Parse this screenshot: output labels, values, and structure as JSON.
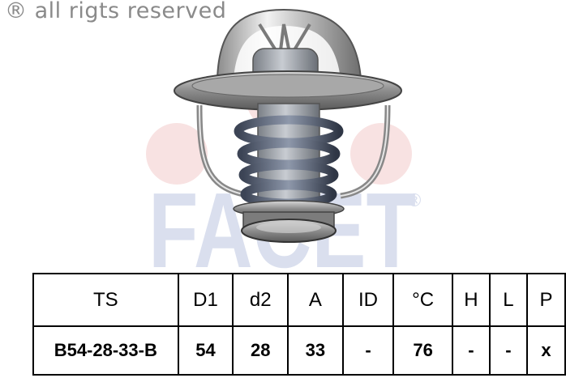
{
  "copyright": {
    "symbol": "®",
    "text": "all rigts reserved"
  },
  "watermark": {
    "text": "FACET",
    "registered": "®",
    "color": "#1f3f9a",
    "dot_color": "#d9534f"
  },
  "product": {
    "icon": "thermostat-icon"
  },
  "table": {
    "headers": [
      "TS",
      "D1",
      "d2",
      "A",
      "ID",
      "°C",
      "H",
      "L",
      "P"
    ],
    "values": [
      "B54-28-33-B",
      "54",
      "28",
      "33",
      "-",
      "76",
      "-",
      "-",
      "x"
    ]
  }
}
